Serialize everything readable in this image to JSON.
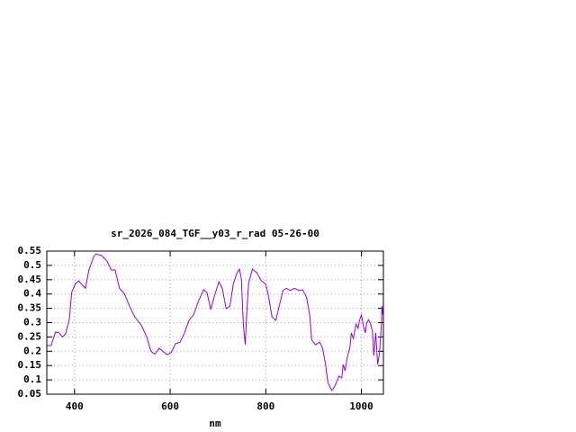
{
  "chart_data": {
    "type": "line",
    "title": "sr_2026_084_TGF__y03_r_rad 05-26-00",
    "x_label": "nm",
    "xlim": [
      342,
      1046
    ],
    "ylim": [
      0.05,
      0.55
    ],
    "xticks": [
      400,
      600,
      800,
      1000
    ],
    "yticks": [
      0.05,
      0.1,
      0.15,
      0.2,
      0.25,
      0.3,
      0.35,
      0.4,
      0.45,
      0.5,
      0.55
    ],
    "grid": true,
    "series": [
      {
        "color": "#9400d3",
        "x": [
          343,
          351,
          360,
          368,
          375,
          381,
          389,
          394,
          402,
          409,
          417,
          423,
          430,
          440,
          445,
          457,
          468,
          477,
          485,
          494,
          504,
          515,
          526,
          540,
          551,
          560,
          568,
          577,
          585,
          594,
          602,
          611,
          621,
          630,
          640,
          649,
          659,
          670,
          677,
          685,
          692,
          702,
          709,
          717,
          725,
          732,
          740,
          745,
          749,
          753,
          757,
          760,
          764,
          772,
          781,
          791,
          800,
          806,
          813,
          821,
          828,
          836,
          843,
          851,
          860,
          870,
          877,
          885,
          892,
          896,
          904,
          913,
          919,
          925,
          930,
          938,
          945,
          953,
          959,
          962,
          966,
          970,
          976,
          979,
          983,
          989,
          993,
          996,
          1000,
          1004,
          1008,
          1011,
          1015,
          1019,
          1023,
          1026,
          1030,
          1034,
          1038,
          1042,
          1043,
          1045
        ],
        "values": [
          0.22,
          0.22,
          0.267,
          0.264,
          0.25,
          0.26,
          0.31,
          0.405,
          0.437,
          0.446,
          0.43,
          0.42,
          0.484,
          0.53,
          0.54,
          0.534,
          0.515,
          0.484,
          0.484,
          0.42,
          0.402,
          0.358,
          0.32,
          0.29,
          0.25,
          0.2,
          0.19,
          0.21,
          0.2,
          0.188,
          0.195,
          0.226,
          0.232,
          0.264,
          0.31,
          0.327,
          0.374,
          0.415,
          0.405,
          0.346,
          0.39,
          0.443,
          0.42,
          0.349,
          0.358,
          0.434,
          0.475,
          0.487,
          0.452,
          0.295,
          0.223,
          0.327,
          0.437,
          0.487,
          0.475,
          0.446,
          0.434,
          0.39,
          0.32,
          0.308,
          0.358,
          0.412,
          0.42,
          0.412,
          0.42,
          0.412,
          0.415,
          0.39,
          0.327,
          0.24,
          0.223,
          0.232,
          0.21,
          0.154,
          0.09,
          0.063,
          0.08,
          0.113,
          0.107,
          0.154,
          0.132,
          0.176,
          0.214,
          0.264,
          0.245,
          0.295,
          0.28,
          0.308,
          0.327,
          0.29,
          0.264,
          0.3,
          0.31,
          0.295,
          0.27,
          0.185,
          0.264,
          0.154,
          0.195,
          0.295,
          0.358,
          0.327
        ]
      }
    ]
  }
}
